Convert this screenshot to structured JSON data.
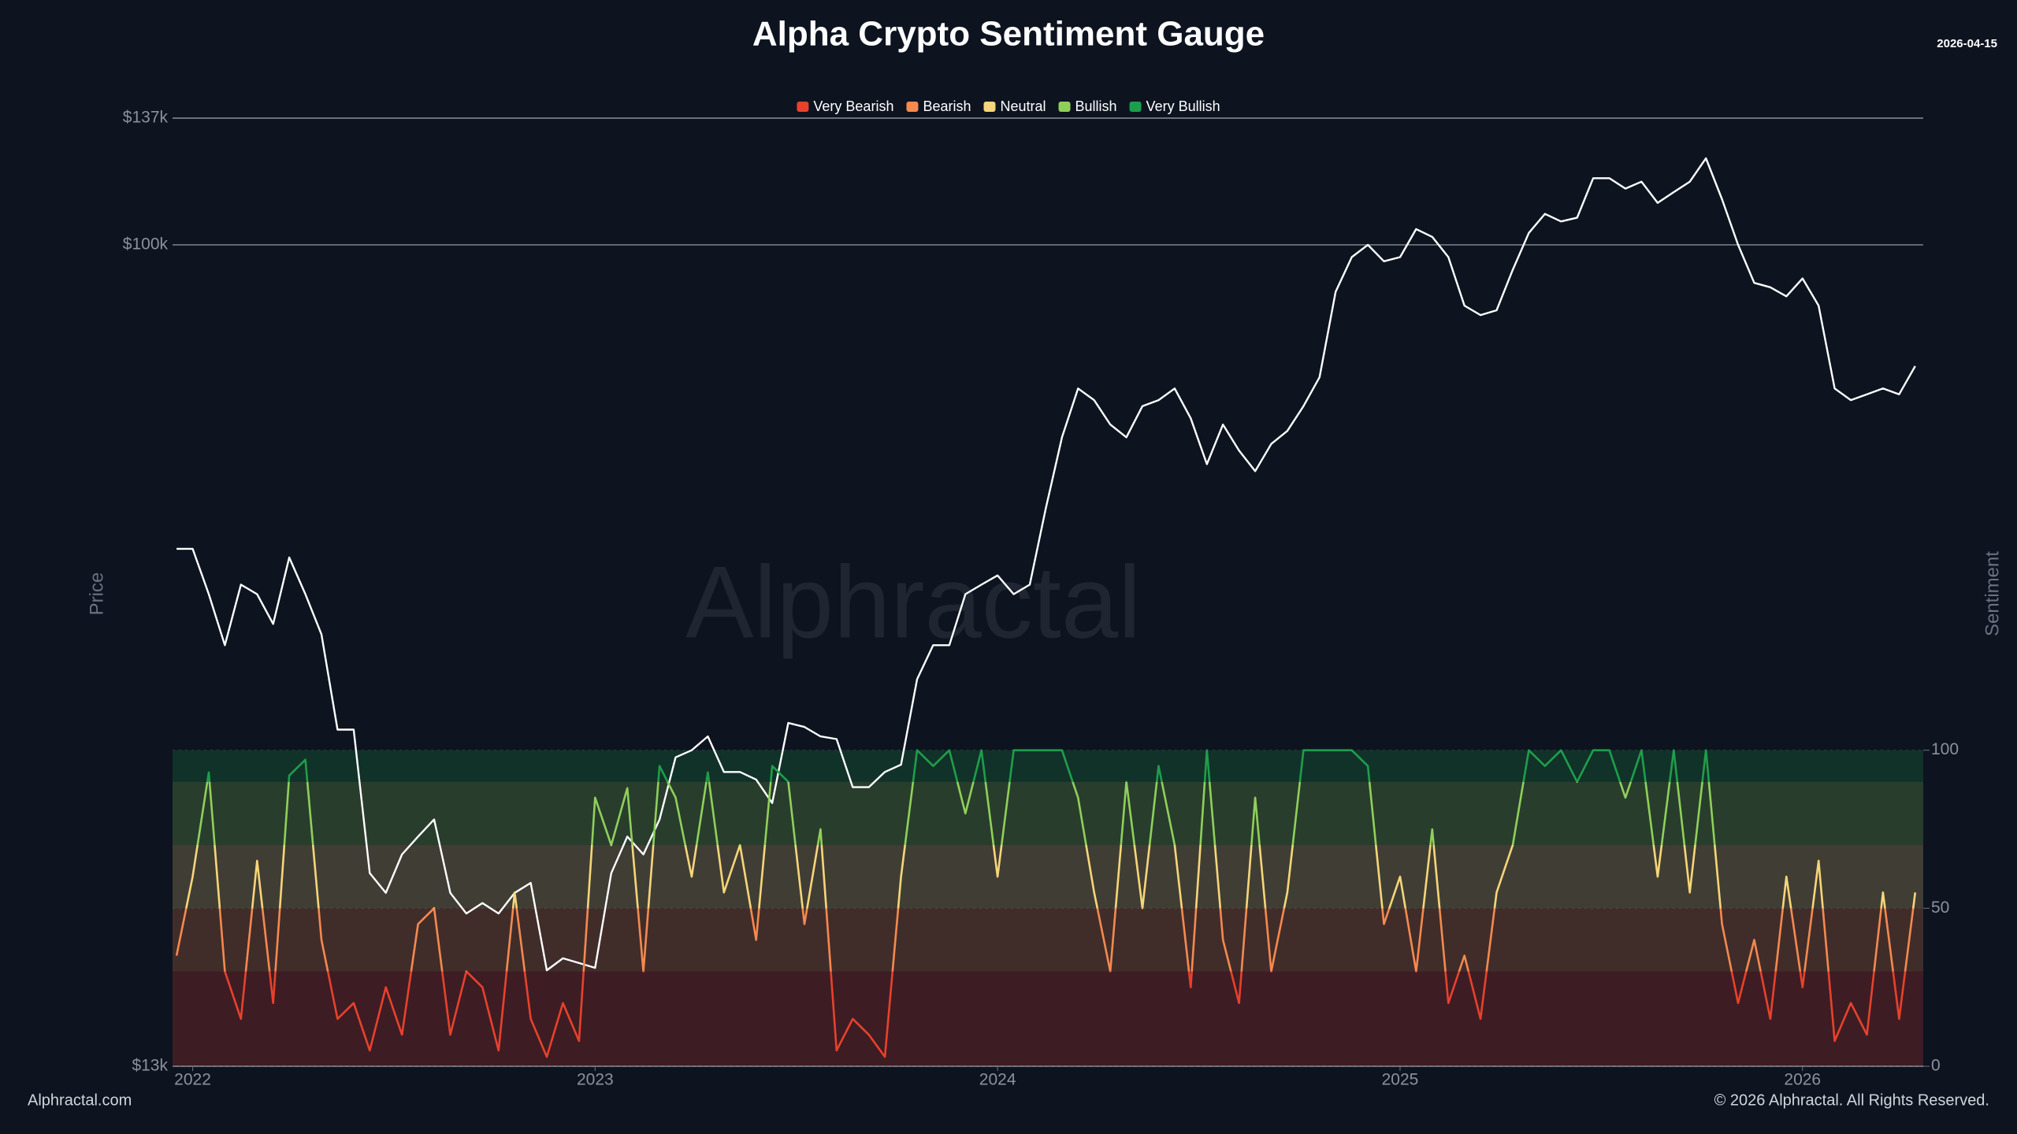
{
  "chart_data": {
    "type": "line",
    "title": "Alpha Crypto Sentiment Gauge",
    "date": "2026-04-15",
    "watermark": "Alphractal",
    "ylabel": "Price",
    "y2label": "Sentiment",
    "footer_left": "Alphractal.com",
    "footer_right": "© 2026 Alphractal. All Rights Reserved.",
    "log_y": true,
    "grid": true,
    "legend": "top",
    "xlim": [
      2021.95,
      2026.3
    ],
    "xticks": [
      2022,
      2023,
      2024,
      2025,
      2026
    ],
    "ylim": [
      13000,
      137000
    ],
    "yticks": [
      {
        "value": 13000,
        "label": "$13k"
      },
      {
        "value": 100000,
        "label": "$100k"
      },
      {
        "value": 137000,
        "label": "$137k"
      }
    ],
    "y2lim": [
      0,
      300
    ],
    "y2ticks": [
      0,
      50,
      100
    ],
    "sentiment_zones": [
      {
        "name": "Very Bearish",
        "color": "#e8412c",
        "from": 0,
        "to": 30
      },
      {
        "name": "Bearish",
        "color": "#f5894f",
        "from": 30,
        "to": 50
      },
      {
        "name": "Neutral",
        "color": "#f7d57a",
        "from": 50,
        "to": 70
      },
      {
        "name": "Bullish",
        "color": "#8fd05a",
        "from": 70,
        "to": 90
      },
      {
        "name": "Very Bullish",
        "color": "#1e9e4a",
        "from": 90,
        "to": 100
      }
    ],
    "x": [
      2021.96,
      2022.0,
      2022.04,
      2022.08,
      2022.12,
      2022.16,
      2022.2,
      2022.24,
      2022.28,
      2022.32,
      2022.36,
      2022.4,
      2022.44,
      2022.48,
      2022.52,
      2022.56,
      2022.6,
      2022.64,
      2022.68,
      2022.72,
      2022.76,
      2022.8,
      2022.84,
      2022.88,
      2022.92,
      2022.96,
      2023.0,
      2023.04,
      2023.08,
      2023.12,
      2023.16,
      2023.2,
      2023.24,
      2023.28,
      2023.32,
      2023.36,
      2023.4,
      2023.44,
      2023.48,
      2023.52,
      2023.56,
      2023.6,
      2023.64,
      2023.68,
      2023.72,
      2023.76,
      2023.8,
      2023.84,
      2023.88,
      2023.92,
      2023.96,
      2024.0,
      2024.04,
      2024.08,
      2024.12,
      2024.16,
      2024.2,
      2024.24,
      2024.28,
      2024.32,
      2024.36,
      2024.4,
      2024.44,
      2024.48,
      2024.52,
      2024.56,
      2024.6,
      2024.64,
      2024.68,
      2024.72,
      2024.76,
      2024.8,
      2024.84,
      2024.88,
      2024.92,
      2024.96,
      2025.0,
      2025.04,
      2025.08,
      2025.12,
      2025.16,
      2025.2,
      2025.24,
      2025.28,
      2025.32,
      2025.36,
      2025.4,
      2025.44,
      2025.48,
      2025.52,
      2025.56,
      2025.6,
      2025.64,
      2025.68,
      2025.72,
      2025.76,
      2025.8,
      2025.84,
      2025.88,
      2025.92,
      2025.96,
      2026.0,
      2026.04,
      2026.08,
      2026.12,
      2026.16,
      2026.2,
      2026.24,
      2026.28
    ],
    "series": [
      {
        "color": "#ffffff",
        "values": [
          47000,
          47000,
          42000,
          37000,
          43000,
          42000,
          39000,
          46000,
          42000,
          38000,
          30000,
          30000,
          21000,
          20000,
          22000,
          23000,
          24000,
          20000,
          19000,
          19500,
          19000,
          20000,
          20500,
          16500,
          17000,
          16800,
          16600,
          21000,
          23000,
          22000,
          24000,
          28000,
          28500,
          29500,
          27000,
          27000,
          26500,
          25000,
          30500,
          30200,
          29500,
          29300,
          26000,
          26000,
          27000,
          27500,
          34000,
          37000,
          37000,
          42000,
          43000,
          44000,
          42000,
          43000,
          52000,
          62000,
          70000,
          68000,
          64000,
          62000,
          67000,
          68000,
          70000,
          65000,
          58000,
          64000,
          60000,
          57000,
          61000,
          63000,
          67000,
          72000,
          89000,
          97000,
          100000,
          96000,
          97000,
          104000,
          102000,
          97000,
          86000,
          84000,
          85000,
          94000,
          103000,
          108000,
          106000,
          107000,
          118000,
          118000,
          115000,
          117000,
          111000,
          114000,
          117000,
          124000,
          112000,
          100000,
          91000,
          90000,
          88000,
          92000,
          86000,
          70000,
          68000,
          69000,
          70000,
          69000,
          74000
        ]
      },
      {
        "axis": "y2",
        "values": [
          35,
          60,
          93,
          30,
          15,
          65,
          20,
          92,
          97,
          40,
          15,
          20,
          5,
          25,
          10,
          45,
          50,
          10,
          30,
          25,
          5,
          55,
          15,
          3,
          20,
          8,
          85,
          70,
          88,
          30,
          95,
          85,
          60,
          93,
          55,
          70,
          40,
          95,
          90,
          45,
          75,
          5,
          15,
          10,
          3,
          60,
          100,
          95,
          100,
          80,
          100,
          60,
          100,
          100,
          100,
          100,
          85,
          55,
          30,
          90,
          50,
          95,
          70,
          25,
          100,
          40,
          20,
          85,
          30,
          55,
          100,
          100,
          100,
          100,
          95,
          45,
          60,
          30,
          75,
          20,
          35,
          15,
          55,
          70,
          100,
          95,
          100,
          90,
          100,
          100,
          85,
          100,
          60,
          100,
          55,
          100,
          45,
          20,
          40,
          15,
          60,
          25,
          65,
          8,
          20,
          10,
          55,
          15,
          55
        ]
      }
    ]
  }
}
